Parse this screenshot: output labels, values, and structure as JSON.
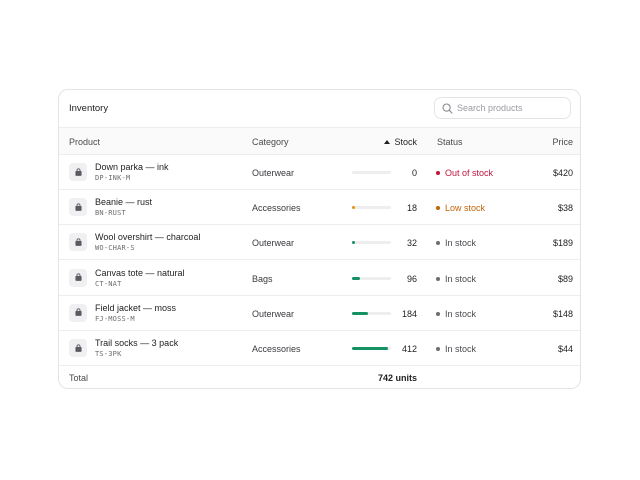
{
  "inventory": {
    "title": "Inventory",
    "search": {
      "placeholder": "Search products",
      "value": ""
    },
    "columns": {
      "product": "Product",
      "category": "Category",
      "stock": "Stock",
      "status": "Status",
      "price": "Price"
    },
    "sort": {
      "column": "stock",
      "direction": "ascending"
    },
    "stock_bar_max": 412,
    "colors": {
      "out_of_stock": "#c0143c",
      "low_stock": "#c0640a",
      "low_stock_bar": "#e8920f",
      "in_stock_dot": "#6d6d72",
      "in_stock_bar": "#149163"
    },
    "rows": [
      {
        "name": "Down parka — ink",
        "sku": "DP-INK-M",
        "category": "Outerwear",
        "stock": 0,
        "status": "Out of stock",
        "status_kind": "out_of_stock",
        "price": "$420",
        "icon": "bag-icon"
      },
      {
        "name": "Beanie — rust",
        "sku": "BN-RUST",
        "category": "Accessories",
        "stock": 18,
        "status": "Low stock",
        "status_kind": "low_stock",
        "price": "$38",
        "icon": "bag-icon"
      },
      {
        "name": "Wool overshirt — charcoal",
        "sku": "WO-CHAR-S",
        "category": "Outerwear",
        "stock": 32,
        "status": "In stock",
        "status_kind": "in_stock",
        "price": "$189",
        "icon": "bag-icon"
      },
      {
        "name": "Canvas tote — natural",
        "sku": "CT-NAT",
        "category": "Bags",
        "stock": 96,
        "status": "In stock",
        "status_kind": "in_stock",
        "price": "$89",
        "icon": "bag-icon"
      },
      {
        "name": "Field jacket — moss",
        "sku": "FJ-MOSS-M",
        "category": "Outerwear",
        "stock": 184,
        "status": "In stock",
        "status_kind": "in_stock",
        "price": "$148",
        "icon": "bag-icon"
      },
      {
        "name": "Trail socks — 3 pack",
        "sku": "TS-3PK",
        "category": "Accessories",
        "stock": 412,
        "status": "In stock",
        "status_kind": "in_stock",
        "price": "$44",
        "icon": "bag-icon"
      }
    ],
    "footer": {
      "label": "Total",
      "total": "742 units"
    }
  }
}
